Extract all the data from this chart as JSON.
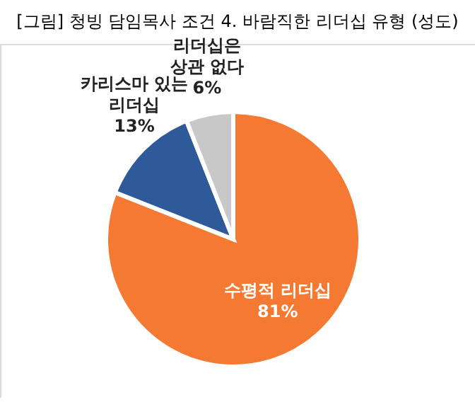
{
  "chart_data": {
    "type": "pie",
    "title": "[그림] 청빙 담임목사 조건 4. 바람직한 리더십 유형 (성도)",
    "categories": [
      "수평적 리더십",
      "카리스마 있는\n리더십",
      "리더십은\n상관 없다"
    ],
    "values": [
      81,
      13,
      6
    ],
    "colors": [
      "#f47932",
      "#2f5a9a",
      "#c8c8c8"
    ],
    "value_labels": [
      "81%",
      "13%",
      "6%"
    ]
  }
}
